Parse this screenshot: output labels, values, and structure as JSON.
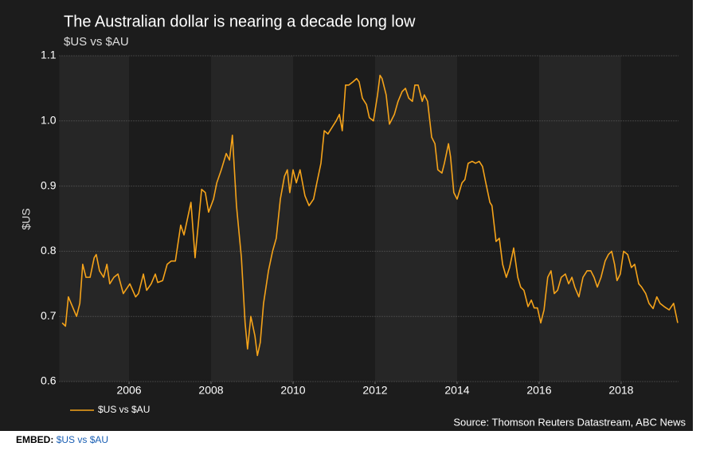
{
  "chart_data": {
    "type": "line",
    "title": "The Australian dollar is nearing a decade long low",
    "subtitle": "$US vs $AU",
    "ylabel": "$US",
    "source": "Source: Thomson Reuters Datastream, ABC News",
    "x": [
      2004.37,
      2004.45,
      2004.52,
      2004.72,
      2004.8,
      2004.87,
      2004.95,
      2005.05,
      2005.15,
      2005.2,
      2005.28,
      2005.38,
      2005.46,
      2005.53,
      2005.63,
      2005.73,
      2005.86,
      2006.02,
      2006.16,
      2006.23,
      2006.35,
      2006.43,
      2006.54,
      2006.64,
      2006.7,
      2006.82,
      2006.93,
      2007.03,
      2007.13,
      2007.26,
      2007.34,
      2007.51,
      2007.61,
      2007.77,
      2007.86,
      2007.94,
      2008.06,
      2008.14,
      2008.25,
      2008.37,
      2008.45,
      2008.52,
      2008.62,
      2008.74,
      2008.83,
      2008.89,
      2008.97,
      2009.07,
      2009.13,
      2009.2,
      2009.28,
      2009.4,
      2009.5,
      2009.59,
      2009.69,
      2009.79,
      2009.86,
      2009.92,
      2010.0,
      2010.08,
      2010.17,
      2010.29,
      2010.39,
      2010.5,
      2010.58,
      2010.68,
      2010.76,
      2010.85,
      2010.95,
      2011.05,
      2011.13,
      2011.2,
      2011.28,
      2011.36,
      2011.46,
      2011.55,
      2011.61,
      2011.69,
      2011.79,
      2011.86,
      2011.96,
      2012.06,
      2012.12,
      2012.17,
      2012.27,
      2012.35,
      2012.47,
      2012.56,
      2012.66,
      2012.74,
      2012.82,
      2012.91,
      2012.97,
      2013.05,
      2013.15,
      2013.2,
      2013.28,
      2013.38,
      2013.46,
      2013.53,
      2013.63,
      2013.69,
      2013.79,
      2013.84,
      2013.92,
      2014.0,
      2014.12,
      2014.19,
      2014.27,
      2014.37,
      2014.45,
      2014.54,
      2014.62,
      2014.7,
      2014.8,
      2014.85,
      2014.95,
      2015.03,
      2015.11,
      2015.2,
      2015.28,
      2015.38,
      2015.48,
      2015.55,
      2015.63,
      2015.73,
      2015.81,
      2015.88,
      2015.96,
      2016.04,
      2016.12,
      2016.21,
      2016.29,
      2016.37,
      2016.45,
      2016.54,
      2016.64,
      2016.72,
      2016.8,
      2016.87,
      2016.97,
      2017.07,
      2017.17,
      2017.26,
      2017.34,
      2017.42,
      2017.51,
      2017.61,
      2017.69,
      2017.77,
      2017.84,
      2017.9,
      2017.98,
      2018.06,
      2018.16,
      2018.25,
      2018.33,
      2018.43,
      2018.5,
      2018.6,
      2018.68,
      2018.78,
      2018.87,
      2018.95,
      2019.05,
      2019.17,
      2019.28,
      2019.38
    ],
    "series": [
      {
        "name": "$US vs $AU",
        "color": "#f5a31a",
        "values": [
          0.69,
          0.685,
          0.73,
          0.7,
          0.72,
          0.78,
          0.76,
          0.76,
          0.79,
          0.795,
          0.77,
          0.76,
          0.78,
          0.75,
          0.76,
          0.765,
          0.735,
          0.75,
          0.73,
          0.735,
          0.765,
          0.74,
          0.75,
          0.765,
          0.752,
          0.755,
          0.78,
          0.785,
          0.785,
          0.84,
          0.825,
          0.875,
          0.79,
          0.895,
          0.89,
          0.86,
          0.88,
          0.905,
          0.925,
          0.95,
          0.94,
          0.978,
          0.87,
          0.79,
          0.69,
          0.65,
          0.7,
          0.67,
          0.64,
          0.66,
          0.72,
          0.77,
          0.8,
          0.82,
          0.88,
          0.915,
          0.925,
          0.89,
          0.925,
          0.905,
          0.925,
          0.885,
          0.87,
          0.88,
          0.905,
          0.935,
          0.985,
          0.98,
          0.99,
          1.0,
          1.01,
          0.985,
          1.055,
          1.055,
          1.06,
          1.065,
          1.06,
          1.035,
          1.025,
          1.005,
          1.0,
          1.04,
          1.07,
          1.065,
          1.04,
          0.995,
          1.01,
          1.03,
          1.045,
          1.05,
          1.035,
          1.03,
          1.055,
          1.055,
          1.03,
          1.04,
          1.03,
          0.975,
          0.965,
          0.925,
          0.92,
          0.935,
          0.965,
          0.945,
          0.89,
          0.88,
          0.905,
          0.91,
          0.935,
          0.938,
          0.935,
          0.938,
          0.93,
          0.905,
          0.875,
          0.87,
          0.815,
          0.82,
          0.78,
          0.76,
          0.775,
          0.805,
          0.76,
          0.745,
          0.74,
          0.715,
          0.725,
          0.713,
          0.713,
          0.69,
          0.71,
          0.76,
          0.77,
          0.735,
          0.74,
          0.76,
          0.765,
          0.75,
          0.76,
          0.745,
          0.73,
          0.76,
          0.77,
          0.77,
          0.76,
          0.745,
          0.76,
          0.785,
          0.795,
          0.8,
          0.78,
          0.755,
          0.765,
          0.8,
          0.795,
          0.775,
          0.78,
          0.75,
          0.745,
          0.735,
          0.72,
          0.712,
          0.73,
          0.72,
          0.715,
          0.71,
          0.72,
          0.69
        ]
      }
    ],
    "xlim": [
      2004.3,
      2019.4
    ],
    "ylim": [
      0.6,
      1.1
    ],
    "xticks": [
      2006,
      2008,
      2010,
      2012,
      2014,
      2016,
      2018
    ],
    "yticks": [
      0.6,
      0.7,
      0.8,
      0.9,
      {
        "value": 1,
        "label": "1.0"
      },
      1.1
    ],
    "grid": true
  },
  "embed": {
    "label": "EMBED:",
    "link": "$US vs $AU"
  }
}
